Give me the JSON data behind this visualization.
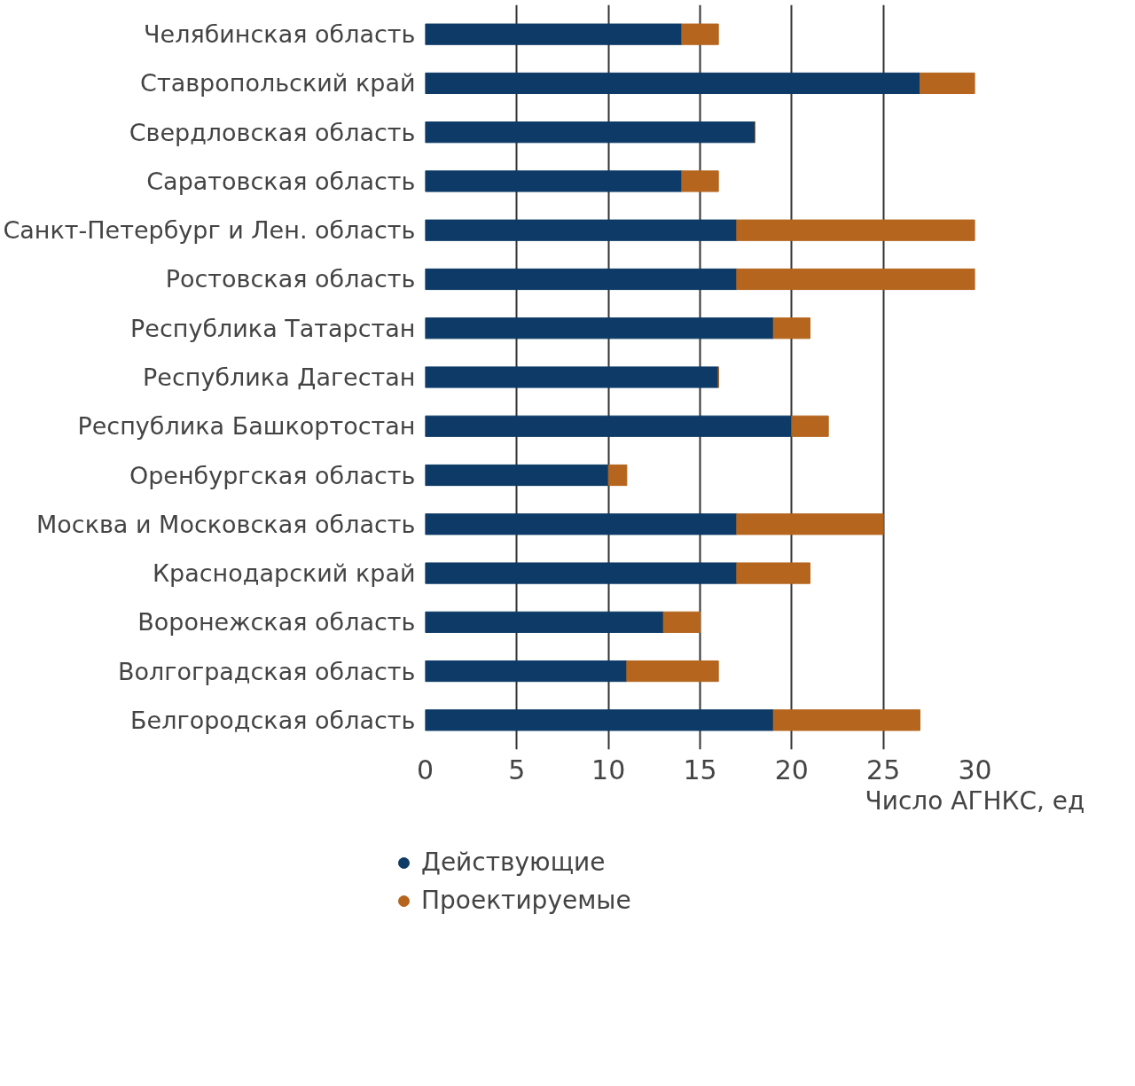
{
  "chart_data": {
    "type": "bar",
    "orientation": "horizontal",
    "stacked": true,
    "categories": [
      "Челябинская область",
      "Ставропольский край",
      "Свердловская область",
      "Саратовская область",
      "Санкт-Петербург и Лен. область",
      "Ростовская область",
      "Республика Татарстан",
      "Республика Дагестан",
      "Республика Башкортостан",
      "Оренбургская область",
      "Москва и Московская область",
      "Краснодарский край",
      "Воронежская область",
      "Волгоградская область",
      "Белгородская область"
    ],
    "series": [
      {
        "name": "Действующие",
        "color": "#0d3a66",
        "values": [
          14,
          27,
          18,
          14,
          17,
          17,
          19,
          16,
          20,
          10,
          17,
          17,
          13,
          11,
          19
        ]
      },
      {
        "name": "Проектируемые",
        "color": "#b5651d",
        "values": [
          2,
          3,
          0,
          2,
          13,
          13,
          2,
          0,
          2,
          1,
          8,
          4,
          2,
          5,
          8
        ]
      }
    ],
    "xlim": [
      0,
      30
    ],
    "xticks": [
      0,
      5,
      10,
      15,
      20,
      25,
      30
    ],
    "xlabel": "Число АГНКС, ед",
    "grid": "x",
    "legend": "bottom"
  }
}
